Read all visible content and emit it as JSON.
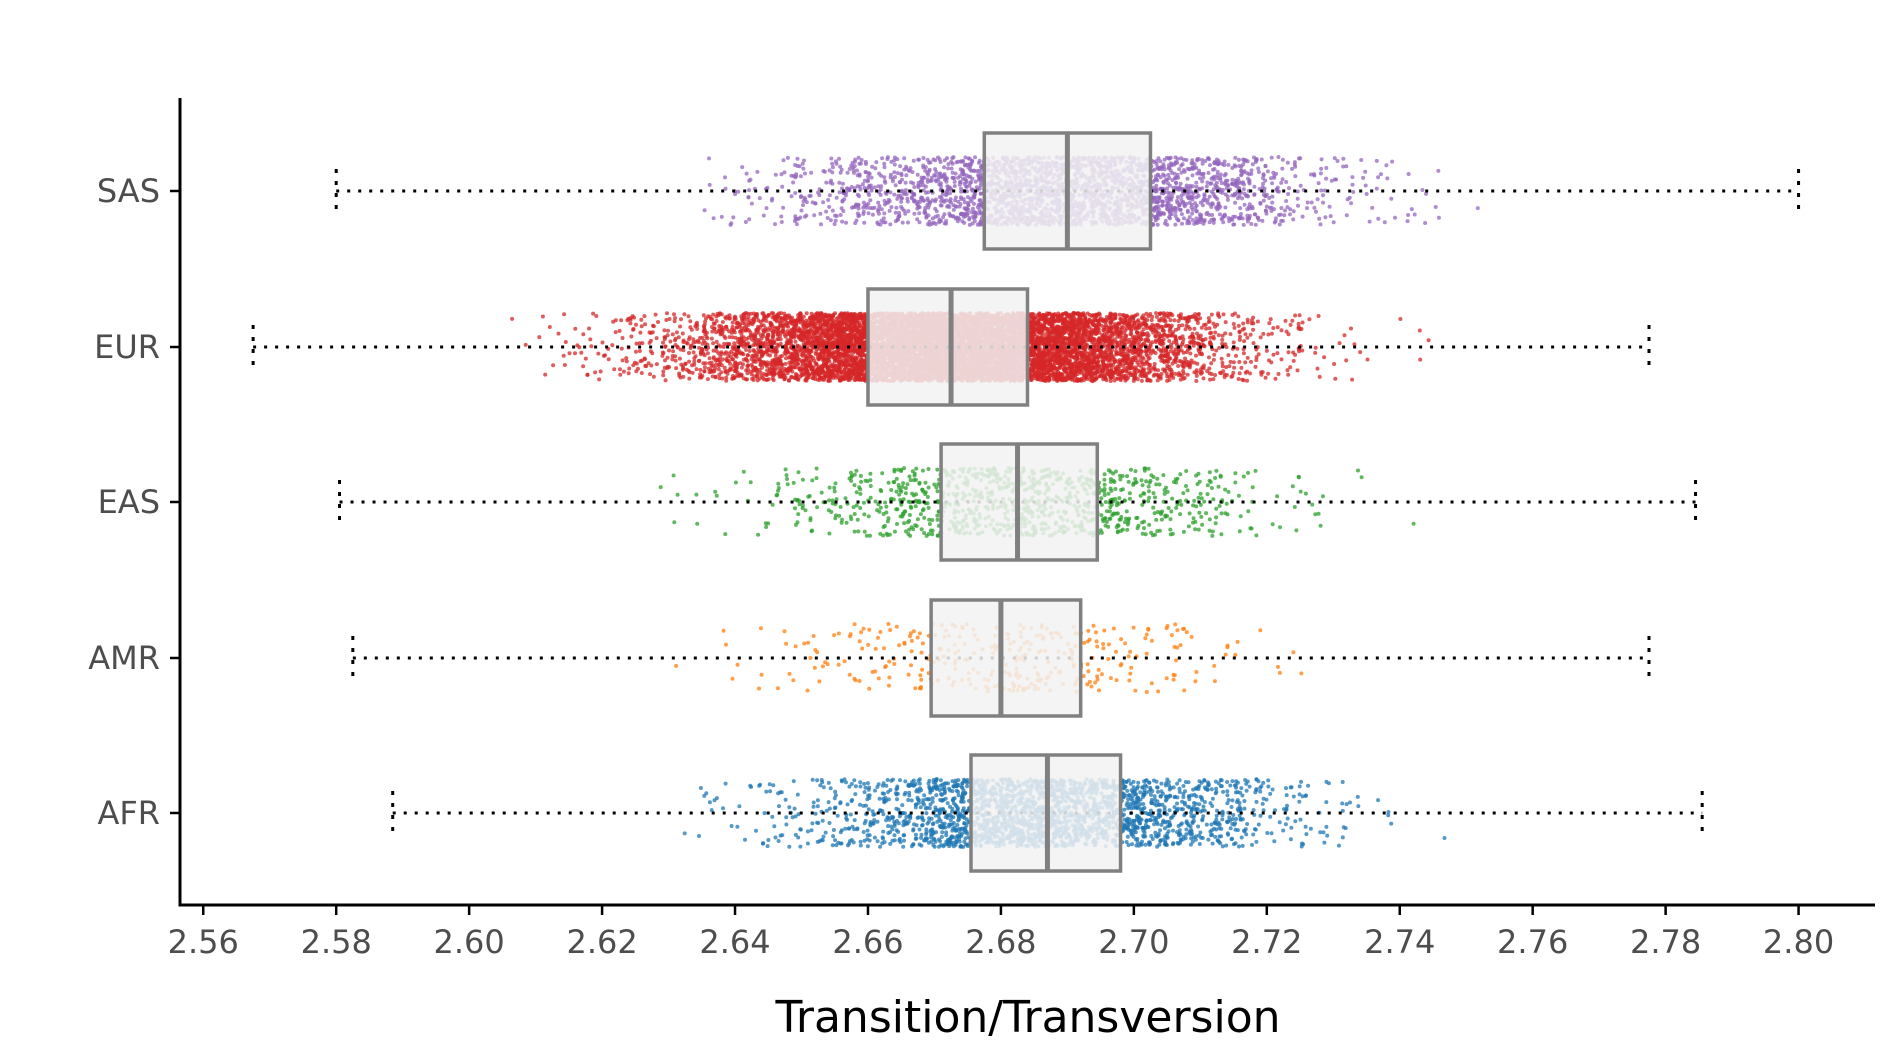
{
  "chart_data": {
    "type": "scatter",
    "subtype": "horizontal jittered strip plot with box plots and whiskers",
    "title": "",
    "xlabel": "Transition/Transversion",
    "ylabel": "",
    "xlim": [
      2.5565,
      2.8115
    ],
    "x_ticks": [
      "2.56",
      "2.58",
      "2.60",
      "2.62",
      "2.64",
      "2.66",
      "2.68",
      "2.70",
      "2.72",
      "2.74",
      "2.76",
      "2.78",
      "2.80"
    ],
    "categories": [
      "AFR",
      "AMR",
      "EAS",
      "EUR",
      "SAS"
    ],
    "grid": false,
    "legend": "none",
    "series": [
      {
        "name": "SAS",
        "color": "#9467bd",
        "min": 2.58,
        "q1": 2.6775,
        "median": 2.69,
        "q3": 2.7025,
        "max": 2.8,
        "n_points": 2600,
        "pts_lo": 2.635,
        "pts_hi": 2.752
      },
      {
        "name": "EUR",
        "color": "#d62728",
        "min": 2.5675,
        "q1": 2.66,
        "median": 2.6725,
        "q3": 2.684,
        "max": 2.7775,
        "n_points": 9000,
        "pts_lo": 2.598,
        "pts_hi": 2.758
      },
      {
        "name": "EAS",
        "color": "#2ca02c",
        "min": 2.5805,
        "q1": 2.671,
        "median": 2.6825,
        "q3": 2.6945,
        "max": 2.7845,
        "n_points": 1000,
        "pts_lo": 2.622,
        "pts_hi": 2.744
      },
      {
        "name": "AMR",
        "color": "#ff7f0e",
        "min": 2.5825,
        "q1": 2.6695,
        "median": 2.68,
        "q3": 2.692,
        "max": 2.7775,
        "n_points": 340,
        "pts_lo": 2.623,
        "pts_hi": 2.727
      },
      {
        "name": "AFR",
        "color": "#1f77b4",
        "min": 2.5885,
        "q1": 2.6755,
        "median": 2.687,
        "q3": 2.698,
        "max": 2.7855,
        "n_points": 2300,
        "pts_lo": 2.625,
        "pts_hi": 2.747
      }
    ]
  },
  "colors": {
    "axis": "#000000",
    "box_stroke": "#808080",
    "box_fill": "#f2f2f2",
    "whisker": "#000000"
  }
}
